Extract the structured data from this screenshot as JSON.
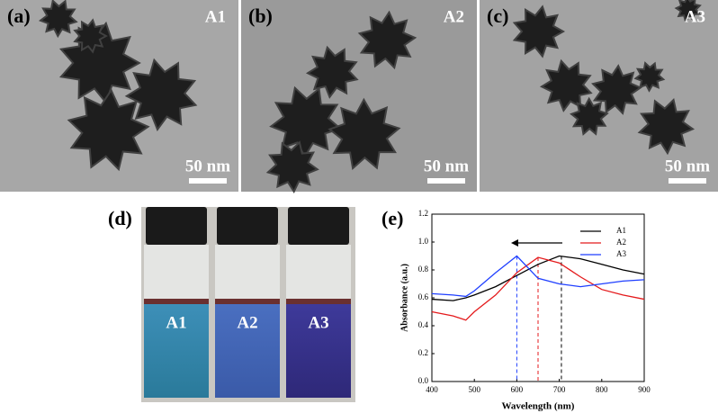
{
  "panels": [
    {
      "label": "(a)",
      "sample": "A1",
      "scale": "50 nm"
    },
    {
      "label": "(b)",
      "sample": "A2",
      "scale": "50 nm"
    },
    {
      "label": "(c)",
      "sample": "A3",
      "scale": "50 nm"
    }
  ],
  "photo": {
    "label": "(d)",
    "vials": [
      "A1",
      "A2",
      "A3"
    ]
  },
  "chart_data": {
    "type": "line",
    "panel_label": "(e)",
    "x_label": "Wavelength (nm)",
    "y_label": "Absorbance (a.u.)",
    "x": [
      400,
      450,
      480,
      500,
      550,
      600,
      650,
      700,
      750,
      800,
      850,
      900
    ],
    "series": [
      {
        "name": "A1",
        "color": "#000000",
        "values": [
          0.59,
          0.58,
          0.6,
          0.62,
          0.68,
          0.76,
          0.84,
          0.9,
          0.88,
          0.84,
          0.8,
          0.77
        ]
      },
      {
        "name": "A2",
        "color": "#e41a1c",
        "values": [
          0.5,
          0.47,
          0.44,
          0.5,
          0.62,
          0.78,
          0.89,
          0.85,
          0.75,
          0.66,
          0.62,
          0.59
        ]
      },
      {
        "name": "A3",
        "color": "#1f3fff",
        "values": [
          0.63,
          0.62,
          0.61,
          0.65,
          0.78,
          0.9,
          0.74,
          0.7,
          0.68,
          0.7,
          0.72,
          0.73
        ]
      }
    ],
    "peak_lines": [
      {
        "x": 705,
        "color": "#000000"
      },
      {
        "x": 650,
        "color": "#e41a1c"
      },
      {
        "x": 600,
        "color": "#1f3fff"
      }
    ],
    "xlim": [
      400,
      900
    ],
    "xticks": [
      400,
      500,
      600,
      700,
      800,
      900
    ],
    "ylim": [
      0,
      1.2
    ],
    "yticks": [
      {
        "value": 0,
        "label": "0.0"
      },
      {
        "value": 0.2,
        "label": "0.2"
      },
      {
        "value": 0.4,
        "label": "0.4"
      },
      {
        "value": 0.6,
        "label": "0.6"
      },
      {
        "value": 0.8,
        "label": "0.8"
      },
      {
        "value": 1.0,
        "label": "1.0"
      },
      {
        "value": 1.2,
        "label": "1.2"
      }
    ],
    "legend": "upper right"
  }
}
